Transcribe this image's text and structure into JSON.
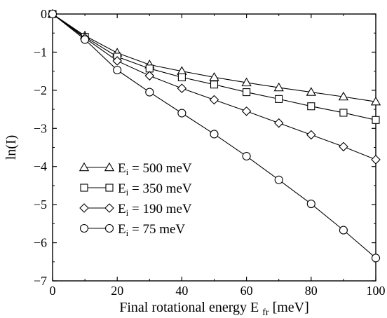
{
  "chart_data": {
    "type": "line",
    "title": "",
    "xlabel": "Final rotational energy E",
    "xlabel_subscript": "fr",
    "xlabel_unit": " [meV]",
    "ylabel": "ln(I)",
    "xlim": [
      0,
      100
    ],
    "ylim": [
      -7,
      0
    ],
    "x_ticks": [
      0,
      20,
      40,
      60,
      80,
      100
    ],
    "y_ticks": [
      0,
      -1,
      -2,
      -3,
      -4,
      -5,
      -6,
      -7
    ],
    "grid": false,
    "legend_position": "lower-left",
    "x": [
      0,
      10,
      20,
      30,
      40,
      50,
      60,
      70,
      80,
      90,
      100
    ],
    "series": [
      {
        "name": "E",
        "name_subscript": "i",
        "name_value": " = 500 meV",
        "marker": "triangle",
        "values": [
          0,
          -0.57,
          -1.02,
          -1.33,
          -1.5,
          -1.66,
          -1.8,
          -1.93,
          -2.05,
          -2.17,
          -2.3
        ]
      },
      {
        "name": "E",
        "name_subscript": "i",
        "name_value": " = 350 meV",
        "marker": "square",
        "values": [
          0,
          -0.6,
          -1.12,
          -1.43,
          -1.66,
          -1.85,
          -2.05,
          -2.23,
          -2.42,
          -2.59,
          -2.78
        ]
      },
      {
        "name": "E",
        "name_subscript": "i",
        "name_value": " = 190 meV",
        "marker": "diamond",
        "values": [
          0,
          -0.63,
          -1.23,
          -1.62,
          -1.95,
          -2.25,
          -2.55,
          -2.86,
          -3.17,
          -3.48,
          -3.82
        ]
      },
      {
        "name": "E",
        "name_subscript": "i",
        "name_value": " = 75 meV",
        "marker": "circle",
        "values": [
          0,
          -0.67,
          -1.47,
          -2.05,
          -2.6,
          -3.15,
          -3.73,
          -4.35,
          -4.98,
          -5.67,
          -6.4
        ]
      }
    ]
  }
}
